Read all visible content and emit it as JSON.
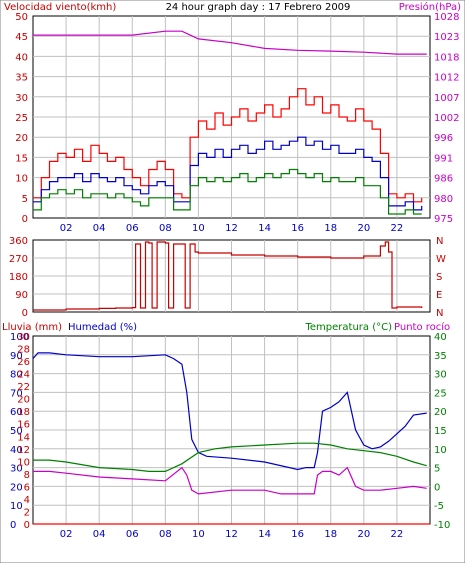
{
  "title": "24 hour graph day : 17 Febrero 2009",
  "chart_data": [
    {
      "type": "line",
      "name": "wind-pressure",
      "ylabel": "Velocidad viento(kmh)",
      "ylabel_right": "Presión(hPa)",
      "ylim": [
        0,
        50
      ],
      "yticks": [
        0,
        5,
        10,
        15,
        20,
        25,
        30,
        35,
        40,
        45,
        50
      ],
      "yticks_right": [
        975,
        980,
        986,
        991,
        996,
        1002,
        1007,
        1012,
        1018,
        1023,
        1028
      ],
      "ylim_right": [
        975,
        1028
      ],
      "xlim": [
        0,
        24
      ],
      "xticks": [
        "02",
        "04",
        "06",
        "08",
        "10",
        "12",
        "14",
        "16",
        "18",
        "20",
        "22"
      ],
      "grid": true,
      "series": [
        {
          "key": "gust",
          "color": "#ff0000",
          "x": [
            0,
            0.5,
            1,
            1.5,
            2,
            2.5,
            3,
            3.5,
            4,
            4.5,
            5,
            5.5,
            6,
            6.5,
            7,
            7.5,
            8,
            8.5,
            9,
            9.5,
            10,
            10.5,
            11,
            11.5,
            12,
            12.5,
            13,
            13.5,
            14,
            14.5,
            15,
            15.5,
            16,
            16.5,
            17,
            17.5,
            18,
            18.5,
            19,
            19.5,
            20,
            20.5,
            21,
            21.5,
            22,
            22.5,
            23,
            23.5
          ],
          "values": [
            5,
            10,
            14,
            16,
            15,
            17,
            14,
            18,
            16,
            14,
            15,
            12,
            10,
            8,
            12,
            14,
            12,
            6,
            5,
            20,
            24,
            22,
            26,
            23,
            25,
            27,
            24,
            26,
            28,
            25,
            27,
            30,
            32,
            28,
            30,
            26,
            28,
            25,
            24,
            27,
            24,
            22,
            16,
            6,
            5,
            6,
            4,
            5
          ]
        },
        {
          "key": "wind",
          "color": "#0000c8",
          "x": [
            0,
            0.5,
            1,
            1.5,
            2,
            2.5,
            3,
            3.5,
            4,
            4.5,
            5,
            5.5,
            6,
            6.5,
            7,
            7.5,
            8,
            8.5,
            9,
            9.5,
            10,
            10.5,
            11,
            11.5,
            12,
            12.5,
            13,
            13.5,
            14,
            14.5,
            15,
            15.5,
            16,
            16.5,
            17,
            17.5,
            18,
            18.5,
            19,
            19.5,
            20,
            20.5,
            21,
            21.5,
            22,
            22.5,
            23,
            23.5
          ],
          "values": [
            4,
            7,
            9,
            10,
            10,
            11,
            9,
            11,
            10,
            9,
            10,
            8,
            7,
            6,
            8,
            9,
            8,
            4,
            4,
            13,
            16,
            15,
            17,
            15,
            17,
            18,
            16,
            17,
            19,
            17,
            18,
            19,
            20,
            18,
            19,
            17,
            18,
            16,
            16,
            17,
            15,
            14,
            10,
            3,
            3,
            4,
            2,
            3
          ]
        },
        {
          "key": "speed",
          "color": "#008000",
          "x": [
            0,
            0.5,
            1,
            1.5,
            2,
            2.5,
            3,
            3.5,
            4,
            4.5,
            5,
            5.5,
            6,
            6.5,
            7,
            7.5,
            8,
            8.5,
            9,
            9.5,
            10,
            10.5,
            11,
            11.5,
            12,
            12.5,
            13,
            13.5,
            14,
            14.5,
            15,
            15.5,
            16,
            16.5,
            17,
            17.5,
            18,
            18.5,
            19,
            19.5,
            20,
            20.5,
            21,
            21.5,
            22,
            22.5,
            23,
            23.5
          ],
          "values": [
            2,
            5,
            6,
            7,
            6,
            7,
            5,
            6,
            6,
            5,
            6,
            5,
            4,
            3,
            5,
            5,
            5,
            2,
            2,
            8,
            10,
            9,
            10,
            9,
            10,
            11,
            9,
            10,
            11,
            10,
            11,
            12,
            11,
            10,
            11,
            9,
            10,
            9,
            9,
            10,
            8,
            8,
            5,
            1,
            1,
            2,
            1,
            1
          ]
        },
        {
          "key": "pressure",
          "color": "#c800c8",
          "axis": "right",
          "x": [
            0,
            2,
            4,
            6,
            8,
            9,
            10,
            12,
            14,
            16,
            18,
            20,
            22,
            23.8
          ],
          "values": [
            1023,
            1023,
            1023,
            1023,
            1024,
            1024,
            1022,
            1021,
            1019.5,
            1019,
            1018.8,
            1018.5,
            1018,
            1018
          ]
        }
      ]
    },
    {
      "type": "line",
      "name": "wind-direction",
      "ylim": [
        0,
        360
      ],
      "yticks": [
        0,
        90,
        180,
        270,
        360
      ],
      "yticks_right": [
        "N",
        "E",
        "S",
        "W",
        "N"
      ],
      "xlim": [
        0,
        24
      ],
      "grid": true,
      "series": [
        {
          "key": "direction",
          "color": "#c80000",
          "x": [
            0,
            2,
            4,
            5,
            6,
            6.2,
            6.5,
            6.8,
            7,
            7.2,
            7.5,
            8,
            8.2,
            8.5,
            9,
            9.2,
            9.5,
            9.8,
            10,
            12,
            14,
            16,
            18,
            20,
            21,
            21.3,
            21.5,
            21.7,
            22,
            23.5
          ],
          "values": [
            10,
            15,
            18,
            20,
            22,
            340,
            20,
            350,
            345,
            20,
            350,
            345,
            20,
            340,
            340,
            20,
            340,
            300,
            295,
            285,
            280,
            275,
            270,
            280,
            330,
            350,
            300,
            20,
            25,
            20
          ]
        }
      ]
    },
    {
      "type": "line",
      "name": "temp-humidity",
      "ylabel": "Humedad (%)",
      "ylabel_prefix": "Lluvia (mm)",
      "ylabel_right": "Temperatura (°C)",
      "ylabel_right2": "Punto rocío",
      "yticks": [
        0,
        10,
        20,
        30,
        40,
        50,
        60,
        70,
        80,
        90,
        100
      ],
      "yticks_rain": [
        0,
        2,
        4,
        6,
        8,
        10,
        12,
        14,
        16,
        18,
        20,
        22,
        24,
        26,
        28,
        30
      ],
      "yticks_right": [
        -10,
        -5,
        0,
        5,
        10,
        15,
        20,
        25,
        30,
        35,
        40
      ],
      "ylim": [
        0,
        100
      ],
      "ylim_right": [
        -10,
        40
      ],
      "xlim": [
        0,
        24
      ],
      "xticks": [
        "02",
        "04",
        "06",
        "08",
        "10",
        "12",
        "14",
        "16",
        "18",
        "20",
        "22"
      ],
      "grid": true,
      "series": [
        {
          "key": "humidity",
          "color": "#0000c8",
          "x": [
            0,
            0.3,
            1,
            2,
            4,
            6,
            8,
            8.5,
            9,
            9.3,
            9.6,
            10,
            10.5,
            12,
            14,
            16,
            16.5,
            17,
            17.2,
            17.5,
            18,
            18.5,
            19,
            19.5,
            20,
            20.5,
            21,
            21.5,
            22,
            22.5,
            23,
            23.8
          ],
          "values": [
            88,
            91,
            91,
            90,
            89,
            89,
            90,
            88,
            85,
            70,
            45,
            38,
            36,
            35,
            33,
            29,
            30,
            30,
            38,
            60,
            62,
            65,
            70,
            50,
            42,
            40,
            41,
            44,
            48,
            52,
            58,
            59
          ]
        },
        {
          "key": "temperature",
          "color": "#008000",
          "axis": "right",
          "x": [
            0,
            1,
            2,
            4,
            6,
            7,
            8,
            9,
            10,
            11,
            12,
            14,
            16,
            17,
            18,
            19,
            20,
            21,
            22,
            23,
            23.8
          ],
          "values": [
            7,
            7,
            6.5,
            5,
            4.5,
            4,
            4,
            6,
            9,
            10,
            10.5,
            11,
            11.5,
            11.5,
            11,
            10,
            9.5,
            9,
            8,
            6.5,
            5.5
          ]
        },
        {
          "key": "dewpoint",
          "color": "#c800c8",
          "axis": "right",
          "x": [
            0,
            1,
            2,
            4,
            6,
            8,
            9,
            9.3,
            9.6,
            10,
            12,
            14,
            15,
            16,
            17,
            17.2,
            17.5,
            18,
            18.5,
            19,
            19.5,
            20,
            21,
            22,
            23,
            23.8
          ],
          "values": [
            4,
            4,
            3.5,
            2.5,
            2,
            1.5,
            5,
            3,
            -1,
            -2,
            -1,
            -1,
            -2,
            -2,
            -2,
            3,
            4,
            4,
            3,
            5,
            0,
            -1,
            -1,
            -0.5,
            0,
            -0.5
          ]
        },
        {
          "key": "rain",
          "color": "#ff0000",
          "axis": "rain",
          "x": [
            0,
            24
          ],
          "values": [
            0,
            0
          ]
        }
      ]
    }
  ]
}
